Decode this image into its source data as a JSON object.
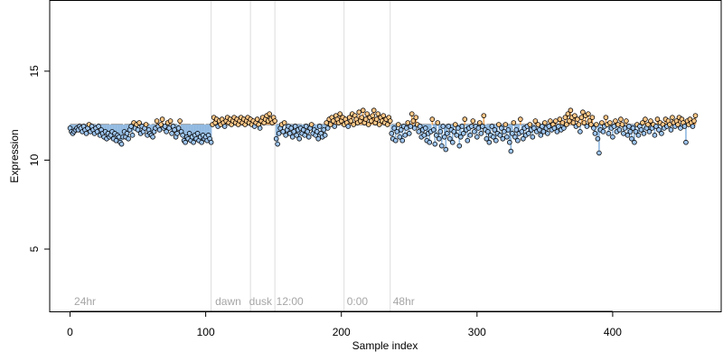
{
  "chart_data": {
    "type": "scatter",
    "title": "",
    "xlabel": "Sample index",
    "ylabel": "Expression",
    "xlim": [
      -15,
      480
    ],
    "ylim": [
      1.5,
      19.0
    ],
    "xticks": [
      0,
      100,
      200,
      300,
      400
    ],
    "yticks": [
      5,
      10,
      15
    ],
    "baseline": 12.0,
    "phase_separators": [
      104,
      133,
      151,
      202,
      236
    ],
    "phase_labels": [
      {
        "x": 3,
        "text": "24hr"
      },
      {
        "x": 107,
        "text": "dawn"
      },
      {
        "x": 132,
        "text": "dusk"
      },
      {
        "x": 152,
        "text": "12:00"
      },
      {
        "x": 204,
        "text": "0:00"
      },
      {
        "x": 238,
        "text": "48hr"
      }
    ],
    "segments": [
      {
        "start": 0,
        "end": 9,
        "values": [
          11.8,
          11.6,
          11.5,
          11.6,
          11.7,
          11.8,
          11.7,
          11.9,
          11.8,
          11.6
        ]
      },
      {
        "start": 10,
        "end": 19,
        "values": [
          11.9,
          11.7,
          11.5,
          11.8,
          12.0,
          11.6,
          11.9,
          11.7,
          11.5,
          11.8
        ]
      },
      {
        "start": 20,
        "end": 29,
        "values": [
          11.6,
          11.9,
          11.4,
          11.7,
          11.5,
          11.3,
          11.6,
          11.2,
          11.5,
          11.3
        ]
      },
      {
        "start": 30,
        "end": 39,
        "values": [
          11.4,
          11.6,
          11.2,
          11.5,
          11.1,
          11.4,
          11.3,
          11.0,
          10.9,
          11.3
        ]
      },
      {
        "start": 40,
        "end": 49,
        "values": [
          11.6,
          11.3,
          11.5,
          11.2,
          11.7,
          11.9,
          11.4,
          12.1,
          11.8,
          12.0
        ]
      },
      {
        "start": 50,
        "end": 59,
        "values": [
          11.7,
          12.1,
          11.5,
          11.9,
          11.6,
          11.8,
          12.0,
          11.4,
          11.7,
          11.5
        ]
      },
      {
        "start": 60,
        "end": 69,
        "values": [
          11.4,
          11.3,
          11.6,
          11.8,
          12.2,
          11.9,
          11.7,
          12.0,
          12.3,
          11.8
        ]
      },
      {
        "start": 70,
        "end": 79,
        "values": [
          11.9,
          11.6,
          12.1,
          11.8,
          12.2,
          11.5,
          11.9,
          11.7,
          11.3,
          11.5
        ]
      },
      {
        "start": 80,
        "end": 89,
        "values": [
          11.8,
          12.2,
          11.6,
          11.4,
          11.1,
          11.0,
          11.3,
          11.2,
          11.5,
          11.1
        ]
      },
      {
        "start": 90,
        "end": 99,
        "values": [
          11.3,
          11.0,
          11.4,
          11.2,
          11.5,
          11.1,
          11.3,
          11.0,
          11.4,
          11.2
        ]
      },
      {
        "start": 100,
        "end": 104,
        "values": [
          11.3,
          11.1,
          11.4,
          11.2,
          11.0
        ]
      },
      {
        "start": 105,
        "end": 114,
        "values": [
          12.0,
          12.4,
          12.1,
          12.3,
          11.9,
          12.2,
          12.0,
          12.3,
          12.1,
          11.9
        ]
      },
      {
        "start": 115,
        "end": 124,
        "values": [
          12.2,
          12.4,
          12.1,
          12.3,
          12.0,
          12.2,
          12.4,
          12.1,
          12.3,
          12.0
        ]
      },
      {
        "start": 125,
        "end": 133,
        "values": [
          12.2,
          12.4,
          12.1,
          12.3,
          12.0,
          12.2,
          12.4,
          12.1,
          12.3
        ]
      },
      {
        "start": 134,
        "end": 143,
        "values": [
          12.0,
          12.2,
          11.9,
          12.1,
          12.3,
          12.0,
          11.8,
          12.2,
          12.4,
          12.1
        ]
      },
      {
        "start": 144,
        "end": 151,
        "values": [
          12.3,
          12.5,
          12.2,
          12.6,
          12.3,
          12.1,
          12.4,
          12.2
        ]
      },
      {
        "start": 152,
        "end": 161,
        "values": [
          11.2,
          10.9,
          11.5,
          11.8,
          12.0,
          11.6,
          12.1,
          11.4,
          11.7,
          11.9
        ]
      },
      {
        "start": 162,
        "end": 171,
        "values": [
          11.5,
          11.8,
          11.3,
          11.6,
          11.9,
          11.4,
          11.7,
          11.2,
          11.8,
          11.5
        ]
      },
      {
        "start": 172,
        "end": 181,
        "values": [
          11.7,
          11.4,
          11.9,
          11.6,
          11.3,
          11.8,
          12.0,
          11.5,
          11.7,
          11.4
        ]
      },
      {
        "start": 182,
        "end": 191,
        "values": [
          11.6,
          11.2,
          11.9,
          11.5,
          11.3,
          11.7,
          11.4,
          12.1,
          11.8,
          12.3
        ]
      },
      {
        "start": 192,
        "end": 202,
        "values": [
          12.0,
          12.4,
          12.2,
          11.9,
          12.5,
          12.3,
          12.1,
          12.6,
          12.2,
          12.4,
          12.0
        ]
      },
      {
        "start": 203,
        "end": 212,
        "values": [
          12.3,
          12.1,
          11.9,
          12.4,
          12.2,
          12.6,
          12.0,
          12.5,
          12.3,
          12.1
        ]
      },
      {
        "start": 213,
        "end": 222,
        "values": [
          12.7,
          12.2,
          12.4,
          12.8,
          12.1,
          12.3,
          12.6,
          12.0,
          12.4,
          12.2
        ]
      },
      {
        "start": 223,
        "end": 236,
        "values": [
          12.5,
          12.8,
          12.1,
          12.3,
          12.6,
          12.0,
          12.4,
          12.2,
          12.5,
          12.1,
          12.3,
          12.0,
          12.4,
          12.2
        ]
      },
      {
        "start": 237,
        "end": 246,
        "values": [
          11.5,
          11.2,
          11.8,
          11.1,
          11.6,
          12.0,
          11.3,
          11.7,
          11.1,
          11.9
        ]
      },
      {
        "start": 247,
        "end": 256,
        "values": [
          11.4,
          11.8,
          12.1,
          11.5,
          11.9,
          12.6,
          12.2,
          11.8,
          12.4,
          12.0
        ]
      },
      {
        "start": 257,
        "end": 266,
        "values": [
          11.6,
          11.9,
          11.3,
          11.7,
          11.4,
          11.8,
          11.1,
          11.5,
          11.0,
          11.6
        ]
      },
      {
        "start": 267,
        "end": 276,
        "values": [
          12.3,
          11.7,
          10.9,
          11.4,
          12.1,
          11.2,
          11.6,
          10.8,
          11.9,
          11.3
        ]
      },
      {
        "start": 277,
        "end": 286,
        "values": [
          10.6,
          11.5,
          11.9,
          11.2,
          11.7,
          11.0,
          11.6,
          12.0,
          11.4,
          11.8
        ]
      },
      {
        "start": 287,
        "end": 296,
        "values": [
          10.8,
          11.3,
          11.9,
          11.5,
          12.3,
          11.7,
          11.1,
          11.8,
          11.4,
          11.9
        ]
      },
      {
        "start": 297,
        "end": 306,
        "values": [
          12.2,
          11.6,
          11.9,
          11.3,
          11.8,
          12.1,
          11.5,
          11.9,
          12.5,
          11.7
        ]
      },
      {
        "start": 307,
        "end": 316,
        "values": [
          11.2,
          11.6,
          11.0,
          11.4,
          11.9,
          11.3,
          11.7,
          11.1,
          11.5,
          12.0
        ]
      },
      {
        "start": 317,
        "end": 326,
        "values": [
          11.4,
          11.8,
          11.2,
          11.6,
          12.0,
          11.3,
          11.7,
          11.0,
          10.5,
          11.5
        ]
      },
      {
        "start": 327,
        "end": 336,
        "values": [
          12.1,
          11.3,
          11.7,
          11.1,
          11.5,
          12.3,
          11.6,
          11.2,
          11.8,
          11.4
        ]
      },
      {
        "start": 337,
        "end": 346,
        "values": [
          11.9,
          11.5,
          12.0,
          11.7,
          11.3,
          11.8,
          12.2,
          11.6,
          12.0,
          11.7
        ]
      },
      {
        "start": 347,
        "end": 356,
        "values": [
          11.4,
          11.9,
          11.6,
          12.1,
          11.8,
          11.5,
          11.9,
          12.2,
          11.7,
          12.0
        ]
      },
      {
        "start": 357,
        "end": 366,
        "values": [
          11.8,
          12.2,
          11.6,
          11.9,
          12.3,
          11.7,
          12.1,
          11.8,
          12.4,
          12.0
        ]
      },
      {
        "start": 367,
        "end": 376,
        "values": [
          12.6,
          12.2,
          12.8,
          12.4,
          12.1,
          12.5,
          11.9,
          12.3,
          12.0,
          11.6
        ]
      },
      {
        "start": 377,
        "end": 386,
        "values": [
          12.4,
          12.7,
          12.1,
          12.5,
          11.9,
          12.6,
          12.2,
          12.0,
          12.4,
          11.8
        ]
      },
      {
        "start": 387,
        "end": 396,
        "values": [
          11.5,
          12.0,
          11.2,
          10.4,
          11.7,
          12.1,
          11.6,
          11.9,
          12.4,
          12.0
        ]
      },
      {
        "start": 397,
        "end": 406,
        "values": [
          11.5,
          12.1,
          11.8,
          11.3,
          11.9,
          12.2,
          11.6,
          12.0,
          11.7,
          12.3
        ]
      },
      {
        "start": 407,
        "end": 416,
        "values": [
          12.0,
          11.5,
          11.8,
          12.2,
          11.4,
          11.9,
          11.6,
          11.2,
          11.8,
          11.0
        ]
      },
      {
        "start": 417,
        "end": 426,
        "values": [
          11.6,
          12.0,
          11.4,
          11.9,
          11.7,
          12.1,
          11.5,
          12.3,
          11.8,
          12.0
        ]
      },
      {
        "start": 427,
        "end": 436,
        "values": [
          11.6,
          12.2,
          11.8,
          12.0,
          11.4,
          11.9,
          12.3,
          11.7,
          12.1,
          11.5
        ]
      },
      {
        "start": 437,
        "end": 446,
        "values": [
          12.0,
          11.8,
          12.3,
          11.9,
          12.2,
          12.0,
          11.7,
          12.4,
          12.1,
          11.9
        ]
      },
      {
        "start": 447,
        "end": 461,
        "values": [
          12.2,
          12.0,
          12.4,
          11.8,
          12.3,
          12.1,
          11.9,
          11.0,
          12.2,
          12.0,
          12.3,
          12.1,
          11.9,
          12.2,
          12.5
        ]
      }
    ],
    "colors": {
      "high": "#ffc888",
      "low": "#9ec5ef",
      "line_high": "#f2a85a",
      "line_low": "#8fb8e0",
      "baseline": "#a9a9a9",
      "separator": "#dcdcdc",
      "phase_text": "#a6a6a6"
    }
  }
}
